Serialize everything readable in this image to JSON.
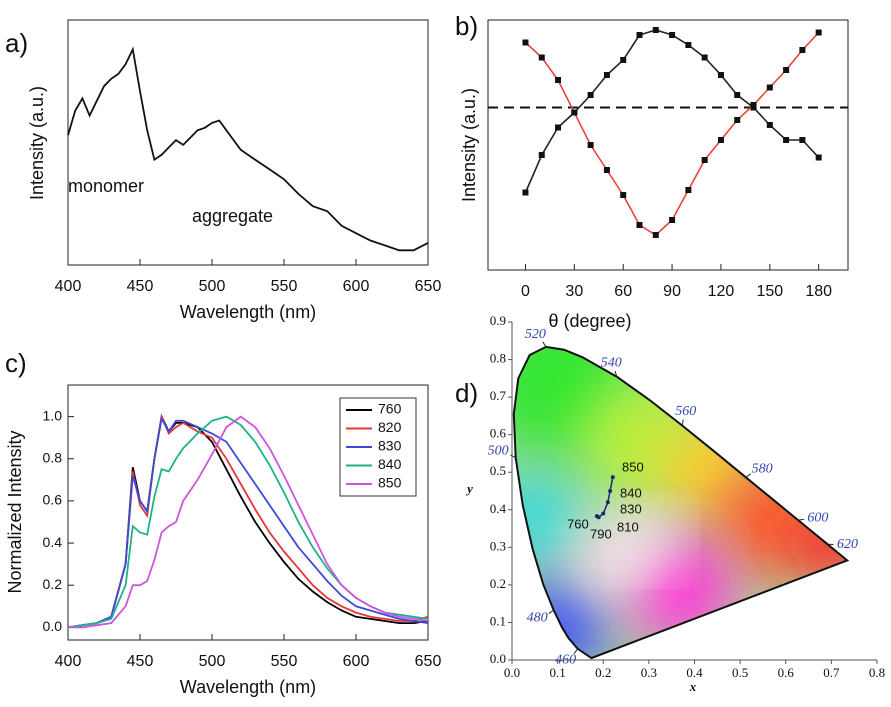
{
  "chart_data": [
    {
      "type": "line",
      "panel_label": "a)",
      "x_label": "Wavelength (nm)",
      "y_label": "Intensity (a.u.)",
      "x": [
        400,
        405,
        410,
        415,
        420,
        425,
        430,
        435,
        440,
        445,
        450,
        455,
        460,
        465,
        470,
        475,
        480,
        485,
        490,
        495,
        500,
        505,
        510,
        515,
        520,
        530,
        540,
        550,
        560,
        570,
        580,
        590,
        600,
        610,
        620,
        630,
        640,
        650
      ],
      "values": [
        0.53,
        0.63,
        0.68,
        0.61,
        0.67,
        0.73,
        0.76,
        0.78,
        0.82,
        0.88,
        0.71,
        0.55,
        0.43,
        0.45,
        0.48,
        0.51,
        0.49,
        0.52,
        0.55,
        0.56,
        0.58,
        0.59,
        0.55,
        0.51,
        0.47,
        0.43,
        0.39,
        0.35,
        0.29,
        0.24,
        0.22,
        0.16,
        0.13,
        0.1,
        0.08,
        0.06,
        0.06,
        0.09
      ],
      "color": "#111111",
      "xlim": [
        400,
        650
      ],
      "ylim": [
        0,
        1
      ],
      "xticks": [
        400,
        450,
        500,
        550,
        600,
        650
      ],
      "annotations": [
        "monomer",
        "aggregate"
      ]
    },
    {
      "type": "line",
      "panel_label": "b)",
      "x_label": "θ (degree)",
      "y_label": "Intensity (a.u.)",
      "markers": true,
      "x": [
        0,
        10,
        20,
        30,
        40,
        50,
        60,
        70,
        80,
        90,
        100,
        110,
        120,
        130,
        140,
        150,
        160,
        170,
        180
      ],
      "series": [
        {
          "color": "#222222",
          "values": [
            0.31,
            0.46,
            0.57,
            0.63,
            0.7,
            0.78,
            0.84,
            0.94,
            0.96,
            0.94,
            0.9,
            0.85,
            0.78,
            0.7,
            0.65,
            0.58,
            0.52,
            0.52,
            0.45
          ]
        },
        {
          "color": "#e8443a",
          "values": [
            0.91,
            0.85,
            0.76,
            0.63,
            0.5,
            0.4,
            0.3,
            0.18,
            0.14,
            0.2,
            0.32,
            0.44,
            0.52,
            0.6,
            0.66,
            0.73,
            0.8,
            0.88,
            0.95
          ]
        }
      ],
      "hline": 0.65,
      "xlim": [
        -23,
        198
      ],
      "ylim": [
        0,
        1
      ],
      "xticks": [
        0,
        30,
        60,
        90,
        120,
        150,
        180
      ]
    },
    {
      "type": "line",
      "panel_label": "c)",
      "x_label": "Wavelength (nm)",
      "y_label": "Normalized Intensity",
      "x": [
        400,
        410,
        420,
        430,
        440,
        445,
        450,
        455,
        460,
        465,
        470,
        475,
        480,
        490,
        500,
        510,
        520,
        530,
        540,
        550,
        560,
        570,
        580,
        590,
        600,
        610,
        620,
        630,
        640,
        650
      ],
      "series": [
        {
          "name": "760",
          "color": "#000000",
          "values": [
            0.0,
            0.01,
            0.02,
            0.05,
            0.3,
            0.76,
            0.6,
            0.55,
            0.8,
            1.0,
            0.93,
            0.97,
            0.97,
            0.95,
            0.88,
            0.75,
            0.62,
            0.5,
            0.4,
            0.31,
            0.23,
            0.17,
            0.12,
            0.08,
            0.05,
            0.04,
            0.03,
            0.02,
            0.02,
            0.03
          ]
        },
        {
          "name": "820",
          "color": "#e8343a",
          "values": [
            0.0,
            0.01,
            0.02,
            0.05,
            0.3,
            0.74,
            0.58,
            0.53,
            0.8,
            1.0,
            0.92,
            0.95,
            0.97,
            0.93,
            0.9,
            0.8,
            0.68,
            0.56,
            0.45,
            0.36,
            0.28,
            0.2,
            0.14,
            0.1,
            0.07,
            0.05,
            0.04,
            0.03,
            0.03,
            0.05
          ]
        },
        {
          "name": "830",
          "color": "#3b4bd8",
          "values": [
            0.0,
            0.01,
            0.02,
            0.05,
            0.3,
            0.72,
            0.6,
            0.55,
            0.8,
            0.99,
            0.93,
            0.98,
            0.98,
            0.95,
            0.92,
            0.88,
            0.78,
            0.68,
            0.58,
            0.48,
            0.38,
            0.3,
            0.22,
            0.15,
            0.1,
            0.08,
            0.06,
            0.04,
            0.03,
            0.02
          ]
        },
        {
          "name": "840",
          "color": "#1fb28a",
          "values": [
            0.0,
            0.01,
            0.02,
            0.04,
            0.2,
            0.48,
            0.45,
            0.44,
            0.62,
            0.75,
            0.74,
            0.8,
            0.85,
            0.92,
            0.98,
            1.0,
            0.96,
            0.88,
            0.77,
            0.64,
            0.5,
            0.38,
            0.28,
            0.2,
            0.14,
            0.1,
            0.07,
            0.06,
            0.05,
            0.04
          ]
        },
        {
          "name": "850",
          "color": "#cc55dd",
          "values": [
            0.0,
            0.0,
            0.01,
            0.02,
            0.1,
            0.2,
            0.2,
            0.22,
            0.32,
            0.45,
            0.48,
            0.5,
            0.6,
            0.7,
            0.82,
            0.95,
            1.0,
            0.95,
            0.85,
            0.72,
            0.58,
            0.44,
            0.3,
            0.2,
            0.14,
            0.1,
            0.07,
            0.05,
            0.04,
            0.03
          ]
        }
      ],
      "xlim": [
        400,
        650
      ],
      "ylim": [
        -0.06,
        1.15
      ],
      "xticks": [
        400,
        450,
        500,
        550,
        600,
        650
      ],
      "yticks": [
        {
          "value": 0,
          "label": "0.0"
        },
        0.2,
        0.4,
        0.6,
        0.8,
        {
          "value": 1,
          "label": "1.0"
        }
      ]
    },
    {
      "type": "chromaticity",
      "panel_label": "d)",
      "x_label": "x",
      "y_label": "y",
      "locus": {
        "x": [
          0.1741,
          0.144,
          0.1241,
          0.1096,
          0.0913,
          0.0687,
          0.0454,
          0.0235,
          0.0082,
          0.0039,
          0.0139,
          0.0389,
          0.0743,
          0.1142,
          0.1547,
          0.2296,
          0.3016,
          0.3731,
          0.4441,
          0.5125,
          0.5752,
          0.627,
          0.6915,
          0.719,
          0.7347
        ],
        "y": [
          0.005,
          0.0297,
          0.0578,
          0.0868,
          0.1327,
          0.2007,
          0.295,
          0.4127,
          0.5384,
          0.6548,
          0.7502,
          0.812,
          0.8338,
          0.8262,
          0.8059,
          0.7543,
          0.6923,
          0.6245,
          0.5547,
          0.4866,
          0.4242,
          0.3725,
          0.3083,
          0.2809,
          0.2653
        ],
        "labels": [
          null,
          "460",
          null,
          null,
          "480",
          null,
          null,
          null,
          "500",
          null,
          null,
          null,
          "520",
          null,
          null,
          "540",
          null,
          "560",
          null,
          "580",
          null,
          "600",
          "620",
          null,
          null
        ]
      },
      "points": {
        "labels": [
          "760",
          "790",
          "810",
          "830",
          "840",
          "850"
        ],
        "x": [
          0.186,
          0.19,
          0.2,
          0.21,
          0.215,
          0.221
        ],
        "y": [
          0.383,
          0.38,
          0.39,
          0.42,
          0.45,
          0.487
        ]
      },
      "xlim": [
        0,
        0.8
      ],
      "ylim": [
        0,
        0.9
      ],
      "xticks": [
        {
          "value": 0,
          "label": "0.0"
        },
        0.1,
        0.2,
        0.3,
        0.4,
        0.5,
        0.6,
        0.7,
        0.8
      ],
      "yticks": [
        {
          "value": 0,
          "label": "0.0"
        },
        0.1,
        0.2,
        0.3,
        0.4,
        0.5,
        0.6,
        0.7,
        0.8,
        0.9
      ]
    }
  ]
}
